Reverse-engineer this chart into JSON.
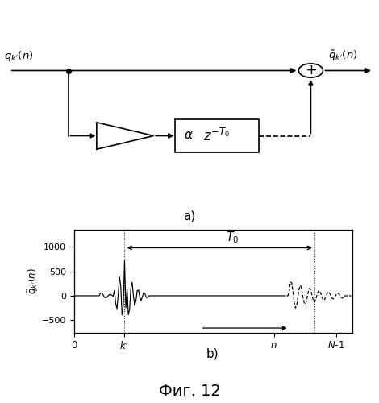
{
  "fig_width": 4.7,
  "fig_height": 5.0,
  "dpi": 100,
  "bg_color": "#ffffff",
  "lw": 1.2,
  "label_a": "a)",
  "label_b": "b)",
  "caption": "Фиг. 12",
  "input_label": "$q_{k^\\prime}(n)$",
  "output_label": "$\\tilde{q}_{k^\\prime}(n)$",
  "alpha_label": "$\\alpha$",
  "z_label": "$z^{-T_0}$",
  "T0_label": "$T_0$",
  "yticks": [
    -500,
    0,
    500,
    1000
  ],
  "ylim": [
    -750,
    1350
  ],
  "xlim": [
    0,
    220
  ],
  "ylabel": "$\\tilde{q}_{k^\\prime}(n)$"
}
